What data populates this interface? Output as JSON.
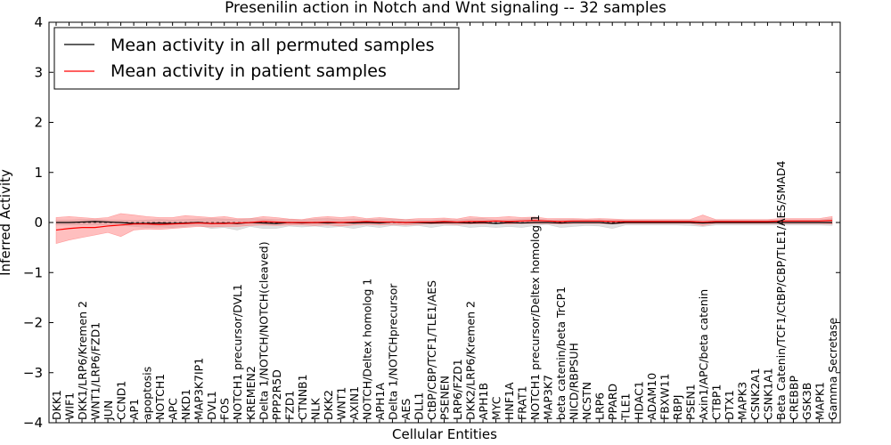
{
  "chart_data": {
    "type": "line",
    "title": "Presenilin action in Notch and Wnt signaling -- 32 samples",
    "xlabel": "Cellular Entities",
    "ylabel": "Inferred Activity",
    "ylim": [
      -4,
      4
    ],
    "yticks": [
      -4,
      -3,
      -2,
      -1,
      0,
      1,
      2,
      3,
      4
    ],
    "ytick_labels": [
      "−4",
      "−3",
      "−2",
      "−1",
      "0",
      "1",
      "2",
      "3",
      "4"
    ],
    "legend_position": "top-left",
    "categories": [
      "DKK1",
      "WIF1",
      "DKK1/LRP6/Kremen 2",
      "WNT1/LRP6/FZD1",
      "JUN",
      "CCND1",
      "AP1",
      "apoptosis",
      "NOTCH1",
      "APC",
      "NKD1",
      "MAP3K7IP1",
      "DVL1",
      "FOS",
      "NOTCH1 precursor/DVL1",
      "KREMEN2",
      "Delta 1/NOTCH/NOTCH(cleaved)",
      "PPP2R5D",
      "FZD1",
      "CTNNB1",
      "NLK",
      "DKK2",
      "WNT1",
      "AXIN1",
      "NOTCH/Deltex homolog 1",
      "APH1A",
      "Delta 1/NOTCHprecursor",
      "AES",
      "DLL1",
      "CtBP/CBP/TCF1/TLE1/AES",
      "PSENEN",
      "LRP6/FZD1",
      "DKK2/LRP6/Kremen 2",
      "APH1B",
      "MYC",
      "HNF1A",
      "FRAT1",
      "NOTCH1 precursor/Deltex homolog 1",
      "MAP3K7",
      "beta catenin/beta TrCP1",
      "NICD/RBPSUH",
      "NCSTN",
      "LRP6",
      "PPARD",
      "TLE1",
      "HDAC1",
      "ADAM10",
      "FBXW11",
      "RBPJ",
      "PSEN1",
      "Axin1/APC/beta catenin",
      "CTBP1",
      "DTX1",
      "MAPK3",
      "CSNK2A1",
      "CSNK1A1",
      "Beta Catenin/TCF1/CtBP/CBP/TLE1/AES/SMAD4",
      "CREBBP",
      "GSK3B",
      "MAPK1",
      "Gamma Secretase"
    ],
    "series": [
      {
        "name": "Mean activity in all permuted samples",
        "color": "#000000",
        "band_color": "#bbbbbb",
        "values": [
          0.0,
          0.0,
          0.01,
          0.02,
          0.01,
          0.0,
          -0.02,
          -0.02,
          -0.01,
          -0.02,
          -0.01,
          0.0,
          -0.02,
          -0.01,
          -0.02,
          0.0,
          -0.01,
          -0.02,
          0.0,
          -0.01,
          0.0,
          -0.01,
          0.0,
          -0.01,
          0.0,
          -0.01,
          0.01,
          0.0,
          0.0,
          -0.01,
          0.0,
          0.0,
          -0.01,
          0.0,
          -0.02,
          0.0,
          -0.01,
          0.0,
          0.0,
          -0.01,
          0.0,
          0.0,
          0.0,
          -0.02,
          0.0,
          0.0,
          0.0,
          0.0,
          0.0,
          0.0,
          -0.01,
          0.0,
          0.0,
          0.0,
          0.0,
          0.0,
          0.0,
          0.0,
          0.0,
          0.0,
          0.0
        ],
        "lower": [
          -0.05,
          -0.05,
          -0.05,
          -0.05,
          -0.05,
          -0.06,
          -0.08,
          -0.1,
          -0.09,
          -0.1,
          -0.08,
          -0.06,
          -0.12,
          -0.1,
          -0.15,
          -0.08,
          -0.12,
          -0.12,
          -0.07,
          -0.09,
          -0.07,
          -0.1,
          -0.08,
          -0.12,
          -0.07,
          -0.1,
          -0.06,
          -0.08,
          -0.06,
          -0.1,
          -0.06,
          -0.06,
          -0.1,
          -0.08,
          -0.1,
          -0.08,
          -0.1,
          -0.06,
          -0.04,
          -0.1,
          -0.08,
          -0.06,
          -0.07,
          -0.12,
          -0.05,
          -0.05,
          -0.05,
          -0.05,
          -0.05,
          -0.06,
          -0.08,
          -0.05,
          -0.05,
          -0.05,
          -0.05,
          -0.05,
          -0.05,
          -0.05,
          -0.05,
          -0.05,
          -0.06
        ],
        "upper": [
          0.05,
          0.05,
          0.06,
          0.06,
          0.05,
          0.05,
          0.04,
          0.05,
          0.06,
          0.05,
          0.06,
          0.07,
          0.08,
          0.07,
          0.06,
          0.08,
          0.07,
          0.06,
          0.06,
          0.05,
          0.07,
          0.08,
          0.06,
          0.07,
          0.06,
          0.07,
          0.07,
          0.06,
          0.05,
          0.05,
          0.06,
          0.05,
          0.07,
          0.08,
          0.05,
          0.06,
          0.07,
          0.08,
          0.05,
          0.06,
          0.06,
          0.05,
          0.06,
          0.05,
          0.05,
          0.05,
          0.05,
          0.05,
          0.05,
          0.05,
          0.05,
          0.05,
          0.05,
          0.05,
          0.05,
          0.05,
          0.05,
          0.05,
          0.05,
          0.05,
          0.08
        ]
      },
      {
        "name": "Mean activity in patient samples",
        "color": "#ff0000",
        "band_color": "#ff7070",
        "values": [
          -0.15,
          -0.12,
          -0.1,
          -0.1,
          -0.07,
          -0.05,
          -0.03,
          -0.03,
          -0.04,
          -0.03,
          -0.02,
          -0.01,
          -0.02,
          -0.02,
          -0.01,
          0.0,
          0.02,
          0.01,
          0.0,
          0.0,
          0.0,
          0.01,
          0.0,
          0.01,
          0.02,
          0.01,
          0.01,
          0.0,
          0.01,
          0.01,
          0.02,
          0.01,
          0.02,
          0.02,
          0.03,
          0.02,
          0.03,
          0.04,
          0.03,
          0.02,
          0.03,
          0.03,
          0.03,
          0.02,
          0.02,
          0.02,
          0.02,
          0.02,
          0.02,
          0.02,
          0.01,
          0.02,
          0.02,
          0.02,
          0.02,
          0.02,
          0.03,
          0.03,
          0.03,
          0.03,
          0.04
        ],
        "lower": [
          -0.42,
          -0.35,
          -0.3,
          -0.25,
          -0.2,
          -0.28,
          -0.15,
          -0.13,
          -0.14,
          -0.12,
          -0.1,
          -0.08,
          -0.09,
          -0.08,
          -0.08,
          -0.06,
          -0.05,
          -0.06,
          -0.05,
          -0.05,
          -0.06,
          -0.05,
          -0.07,
          -0.05,
          -0.04,
          -0.05,
          -0.04,
          -0.05,
          -0.04,
          -0.03,
          -0.03,
          -0.04,
          -0.03,
          -0.03,
          -0.02,
          -0.03,
          -0.02,
          -0.02,
          -0.02,
          -0.03,
          -0.02,
          -0.02,
          -0.02,
          -0.03,
          -0.02,
          -0.02,
          -0.02,
          -0.02,
          -0.02,
          -0.02,
          -0.06,
          -0.02,
          -0.02,
          -0.02,
          -0.02,
          -0.02,
          -0.02,
          -0.02,
          -0.02,
          -0.02,
          -0.03
        ],
        "upper": [
          0.1,
          0.12,
          0.1,
          0.08,
          0.1,
          0.18,
          0.15,
          0.12,
          0.1,
          0.1,
          0.14,
          0.12,
          0.1,
          0.12,
          0.08,
          0.08,
          0.12,
          0.1,
          0.07,
          0.06,
          0.1,
          0.12,
          0.1,
          0.12,
          0.08,
          0.1,
          0.08,
          0.06,
          0.08,
          0.08,
          0.09,
          0.07,
          0.12,
          0.1,
          0.1,
          0.12,
          0.1,
          0.11,
          0.08,
          0.08,
          0.08,
          0.07,
          0.08,
          0.07,
          0.06,
          0.06,
          0.06,
          0.06,
          0.06,
          0.06,
          0.15,
          0.06,
          0.06,
          0.06,
          0.06,
          0.06,
          0.08,
          0.08,
          0.08,
          0.08,
          0.12
        ]
      }
    ]
  }
}
